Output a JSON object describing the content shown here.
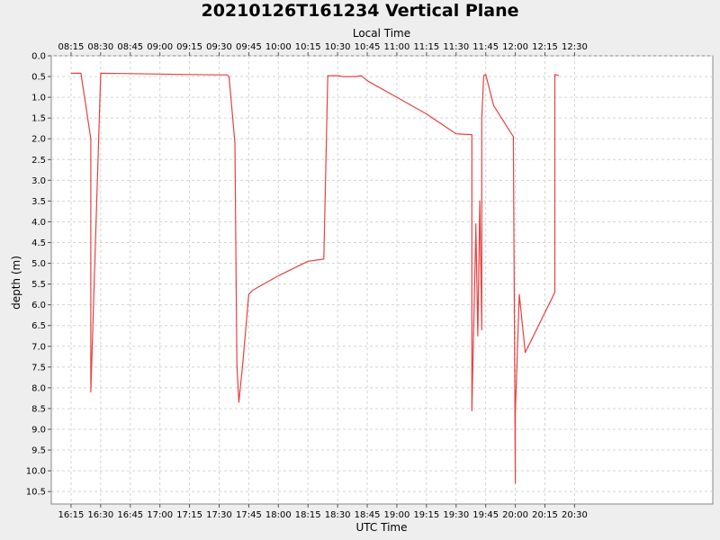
{
  "chart_data": {
    "type": "line",
    "title": "20210126T161234 Vertical Plane",
    "xlabel": "UTC Time",
    "x2label": "Local Time",
    "ylabel": "depth (m)",
    "y_inverted": true,
    "ylim": [
      0.0,
      10.8
    ],
    "xlim_utc_minutes": [
      965,
      1300
    ],
    "local_offset_minutes": -480,
    "grid": true,
    "series_color": "#e84040",
    "x_ticks_utc": [
      "16:15",
      "16:30",
      "16:45",
      "17:00",
      "17:15",
      "17:30",
      "17:45",
      "18:00",
      "18:15",
      "18:30",
      "18:45",
      "19:00",
      "19:15",
      "19:30",
      "19:45",
      "20:00",
      "20:15",
      "20:30"
    ],
    "x_ticks_local": [
      "08:15",
      "08:30",
      "08:45",
      "09:00",
      "09:15",
      "09:30",
      "09:45",
      "10:00",
      "10:15",
      "10:30",
      "10:45",
      "11:00",
      "11:15",
      "11:30",
      "11:45",
      "12:00",
      "12:15",
      "12:30"
    ],
    "y_ticks": [
      "0.0",
      "0.5",
      "1.0",
      "1.5",
      "2.0",
      "2.5",
      "3.0",
      "3.5",
      "4.0",
      "4.5",
      "5.0",
      "5.5",
      "6.0",
      "6.5",
      "7.0",
      "7.5",
      "8.0",
      "8.5",
      "9.0",
      "9.5",
      "10.0",
      "10.5"
    ],
    "series": [
      {
        "x": [
          "16:15",
          "16:20",
          "16:25",
          "16:25",
          "16:30",
          "16:45",
          "17:00",
          "17:15",
          "17:30",
          "17:34",
          "17:35",
          "17:38",
          "17:39",
          "17:40",
          "17:42",
          "17:45",
          "17:47",
          "18:00",
          "18:15",
          "18:23",
          "18:25",
          "18:30",
          "18:33",
          "18:39",
          "18:42",
          "18:45",
          "19:00",
          "19:15",
          "19:30",
          "19:38",
          "19:38",
          "19:40",
          "19:40",
          "19:41",
          "19:42",
          "19:43",
          "19:43",
          "19:44",
          "19:45",
          "19:49",
          "19:59",
          "20:00",
          "20:00",
          "20:02",
          "20:05",
          "20:20",
          "20:20",
          "20:22"
        ],
        "y": [
          0.42,
          0.42,
          2.0,
          8.1,
          0.42,
          0.43,
          0.44,
          0.45,
          0.46,
          0.46,
          0.5,
          2.1,
          7.45,
          8.35,
          7.4,
          5.75,
          5.65,
          5.3,
          4.95,
          4.9,
          0.48,
          0.48,
          0.5,
          0.5,
          0.48,
          0.6,
          1.0,
          1.4,
          1.88,
          1.9,
          8.55,
          4.2,
          4.05,
          6.75,
          3.5,
          6.6,
          1.5,
          0.48,
          0.45,
          1.2,
          1.95,
          10.3,
          8.6,
          5.75,
          7.15,
          5.7,
          0.45,
          0.48
        ]
      }
    ]
  }
}
